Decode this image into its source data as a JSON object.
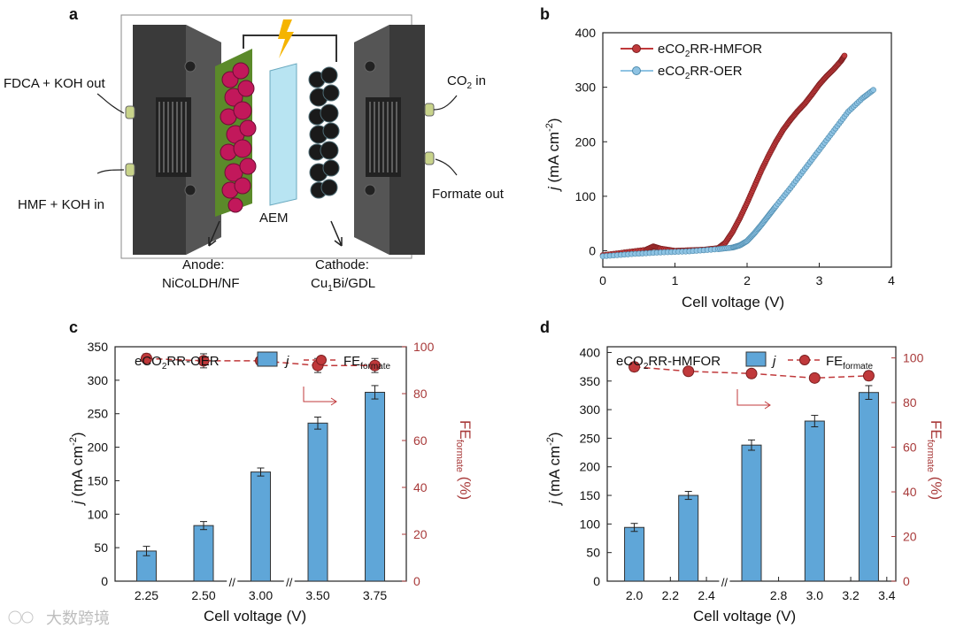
{
  "panels": {
    "a": {
      "label": "a",
      "fdca_out": "FDCA + KOH out",
      "hmf_in": "HMF + KOH in",
      "co2_in": "CO",
      "co2_in_sub": "2",
      "co2_in_tail": " in",
      "formate_out": "Formate out",
      "aem": "AEM",
      "anode_title": "Anode:",
      "anode_material": "NiCoLDH/NF",
      "cathode_title": "Cathode:",
      "cathode_mat_a": "Cu",
      "cathode_mat_sub": "1",
      "cathode_mat_b": "Bi/GDL"
    },
    "b": {
      "label": "b"
    },
    "c": {
      "label": "c"
    },
    "d": {
      "label": "d"
    }
  },
  "watermark": "大数跨境",
  "colors": {
    "red": "#c0393b",
    "blue": "#8fc3e3",
    "bar": "#5fa6d8",
    "axis_red": "#a83a3a"
  },
  "chart_data": [
    {
      "id": "b",
      "type": "line",
      "xlabel": "Cell voltage (V)",
      "ylabel_main": "j",
      "ylabel_unit": "(mA cm",
      "ylabel_sup": "-2",
      "ylabel_close": ")",
      "xlim": [
        0,
        4
      ],
      "ylim": [
        -30,
        400
      ],
      "xticks": [
        "0",
        "1",
        "2",
        "3",
        "4"
      ],
      "yticks": [
        "0",
        "100",
        "200",
        "300",
        "400"
      ],
      "legend_position": "top-left",
      "series": [
        {
          "name": "eCO2RR-HMFOR",
          "label_a": "eCO",
          "label_sub": "2",
          "label_b": "RR-HMFOR",
          "color": "#c0393b",
          "x": [
            0,
            0.3,
            0.6,
            0.7,
            0.8,
            1.0,
            1.2,
            1.4,
            1.6,
            1.7,
            1.8,
            1.9,
            2.0,
            2.1,
            2.2,
            2.3,
            2.4,
            2.5,
            2.6,
            2.7,
            2.8,
            2.9,
            3.0,
            3.1,
            3.2,
            3.3,
            3.35
          ],
          "y": [
            -8,
            -3,
            2,
            8,
            4,
            0,
            1,
            2,
            5,
            15,
            35,
            60,
            88,
            118,
            148,
            175,
            200,
            222,
            240,
            256,
            270,
            287,
            305,
            320,
            333,
            348,
            358
          ]
        },
        {
          "name": "eCO2RR-OER",
          "label_a": "eCO",
          "label_sub": "2",
          "label_b": "RR-OER",
          "color": "#8fc3e3",
          "x": [
            0,
            0.4,
            0.8,
            1.2,
            1.6,
            1.8,
            1.9,
            2.0,
            2.1,
            2.2,
            2.3,
            2.4,
            2.6,
            2.8,
            3.0,
            3.2,
            3.4,
            3.6,
            3.75
          ],
          "y": [
            -10,
            -6,
            -3,
            -1,
            3,
            6,
            10,
            18,
            32,
            48,
            65,
            82,
            115,
            150,
            185,
            220,
            255,
            280,
            295
          ]
        }
      ]
    },
    {
      "id": "c",
      "type": "bar",
      "title": "eCO2RR-OER",
      "title_a": "eCO",
      "title_sub": "2",
      "title_b": "RR-OER",
      "xlabel": "Cell voltage (V)",
      "ylabel_main": "j",
      "ylabel_unit": "(mA cm",
      "ylabel_sup": "-2",
      "ylabel_close": ")",
      "y2label_main": "FE",
      "y2label_sub": "formate",
      "y2label_tail": " (%)",
      "categories": [
        "2.25",
        "2.50",
        "3.00",
        "3.50",
        "3.75"
      ],
      "ylim": [
        0,
        350
      ],
      "y2lim": [
        0,
        100
      ],
      "yticks": [
        "0",
        "50",
        "100",
        "150",
        "200",
        "250",
        "300",
        "350"
      ],
      "y2ticks": [
        "0",
        "20",
        "40",
        "60",
        "80",
        "100"
      ],
      "series": [
        {
          "name": "j",
          "values": [
            45,
            83,
            163,
            236,
            282
          ],
          "errors": [
            7,
            6,
            6,
            9,
            10
          ]
        },
        {
          "name": "FE",
          "name_sub": "formate",
          "values": [
            95,
            94,
            94,
            92,
            92
          ],
          "errors": [
            2,
            3,
            2,
            3,
            3
          ]
        }
      ],
      "axis_breaks": [
        "//",
        "//"
      ]
    },
    {
      "id": "d",
      "type": "bar",
      "title": "eCO2RR-HMFOR",
      "title_a": "eCO",
      "title_sub": "2",
      "title_b": "RR-HMFOR",
      "xlabel": "Cell voltage (V)",
      "ylabel_main": "j",
      "ylabel_unit": "(mA cm",
      "ylabel_sup": "-2",
      "ylabel_close": ")",
      "y2label_main": "FE",
      "y2label_sub": "formate",
      "y2label_tail": " (%)",
      "x": [
        2.0,
        2.3,
        2.65,
        3.0,
        3.3
      ],
      "xlim": [
        1.85,
        3.45
      ],
      "xticks": [
        "2.0",
        "2.2",
        "2.4",
        "2.8",
        "3.0",
        "3.2",
        "3.4"
      ],
      "ylim": [
        0,
        410
      ],
      "y2lim": [
        0,
        105
      ],
      "yticks": [
        "0",
        "50",
        "100",
        "150",
        "200",
        "250",
        "300",
        "350",
        "400"
      ],
      "y2ticks": [
        "0",
        "20",
        "40",
        "60",
        "80",
        "100"
      ],
      "series": [
        {
          "name": "j",
          "values": [
            94,
            150,
            238,
            280,
            330
          ],
          "errors": [
            7,
            7,
            9,
            10,
            12
          ]
        },
        {
          "name": "FE",
          "name_sub": "formate",
          "values": [
            96,
            94,
            93,
            91,
            92
          ],
          "errors": [
            2,
            1,
            1,
            1,
            2
          ]
        }
      ],
      "axis_breaks": [
        "//"
      ]
    }
  ]
}
